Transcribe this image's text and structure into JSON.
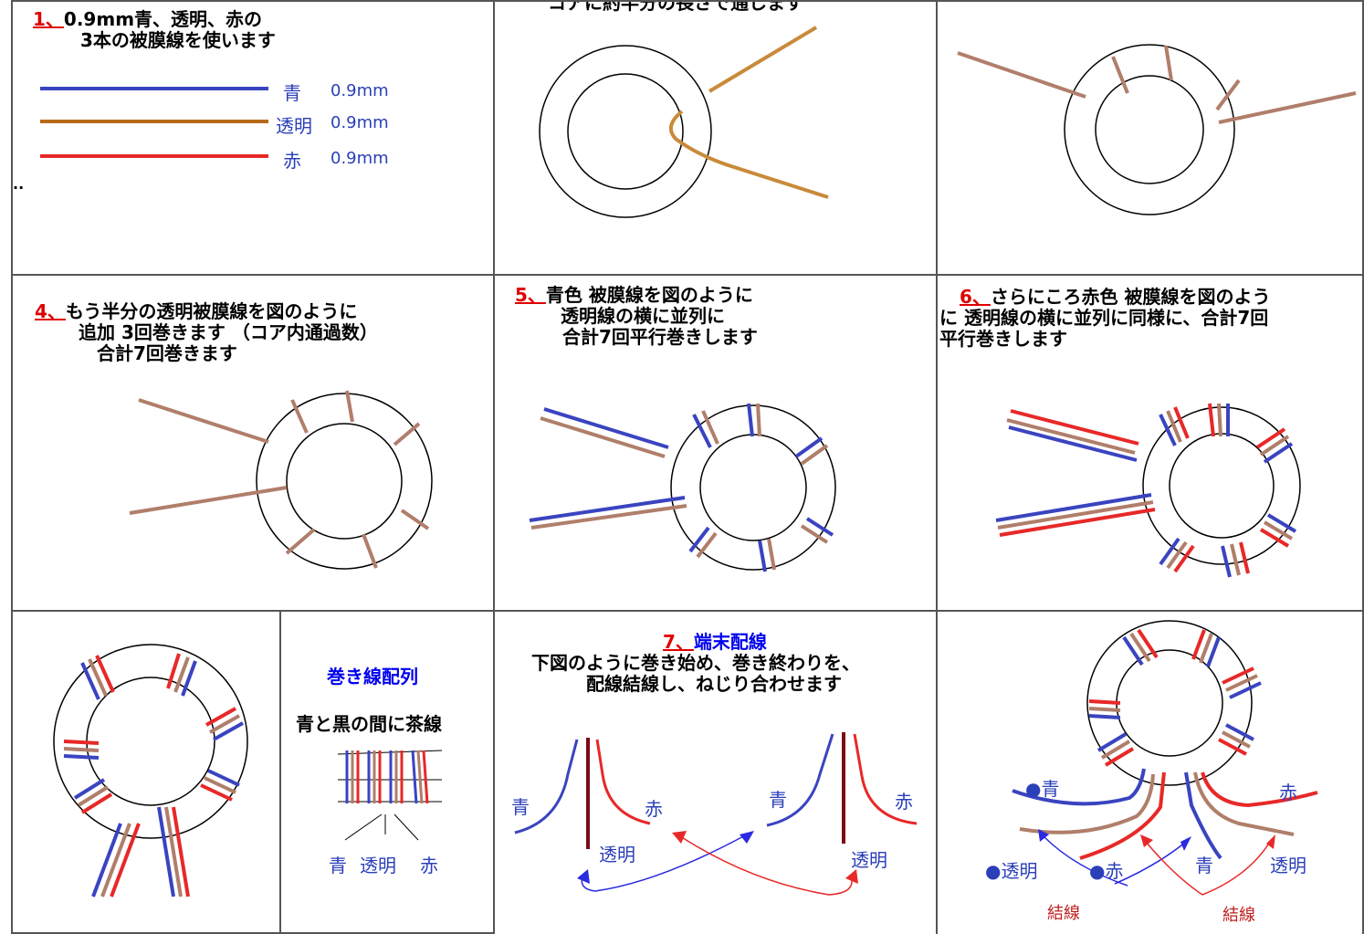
{
  "panel1": {
    "num": "1、",
    "line1": "0.9mm青、透明、赤の",
    "line2": "3本の被膜線を使います",
    "wires": [
      {
        "name": "青",
        "size": "0.9mm"
      },
      {
        "name": "透明",
        "size": "0.9mm"
      },
      {
        "name": "赤",
        "size": "0.9mm"
      }
    ],
    "dots": ".."
  },
  "panel2": {
    "caption": "コアに約半分の長さで通します"
  },
  "panel4": {
    "num": "4、",
    "line1": "もう半分の透明被膜線を図のように",
    "line2": "追加 3回巻きます （コア内通過数）",
    "line3": "合計7回巻きます"
  },
  "panel5": {
    "num": "5、",
    "line1": "青色 被膜線を図のように",
    "line2": "透明線の横に並列に",
    "line3": "合計7回平行巻きします"
  },
  "panel6": {
    "num": "6、",
    "line1": "さらにころ赤色 被膜線を図のよう",
    "line2": "に 透明線の横に並列に同様に、合計7回",
    "line3": "平行巻きします"
  },
  "panel8": {
    "title": "巻き線配列",
    "subtitle": "青と黒の間に茶線",
    "labels": [
      "青",
      "透明",
      "赤"
    ]
  },
  "panel9": {
    "num": "7、",
    "title": "端末配線",
    "line1": "下図のように巻き始め、巻き終わりを、",
    "line2": "配線結線し、ねじり合わせます",
    "labels": {
      "blue_left": "青",
      "red_left": "赤",
      "clear_left": "透明",
      "blue_right": "青",
      "red_right": "赤",
      "clear_right": "透明"
    }
  },
  "panel10": {
    "labels": {
      "blue_dot": "●青",
      "red": "赤",
      "clear_dot": "●透明",
      "red_dot": "●赤",
      "blue": "青",
      "clear": "透明",
      "join1": "結線",
      "join2": "結線"
    }
  },
  "colors": {
    "blue": "#3a44c0",
    "clear": "#b07e6a",
    "red": "#e82828",
    "orange": "#c98a3a",
    "dark": "#7a0a14"
  }
}
